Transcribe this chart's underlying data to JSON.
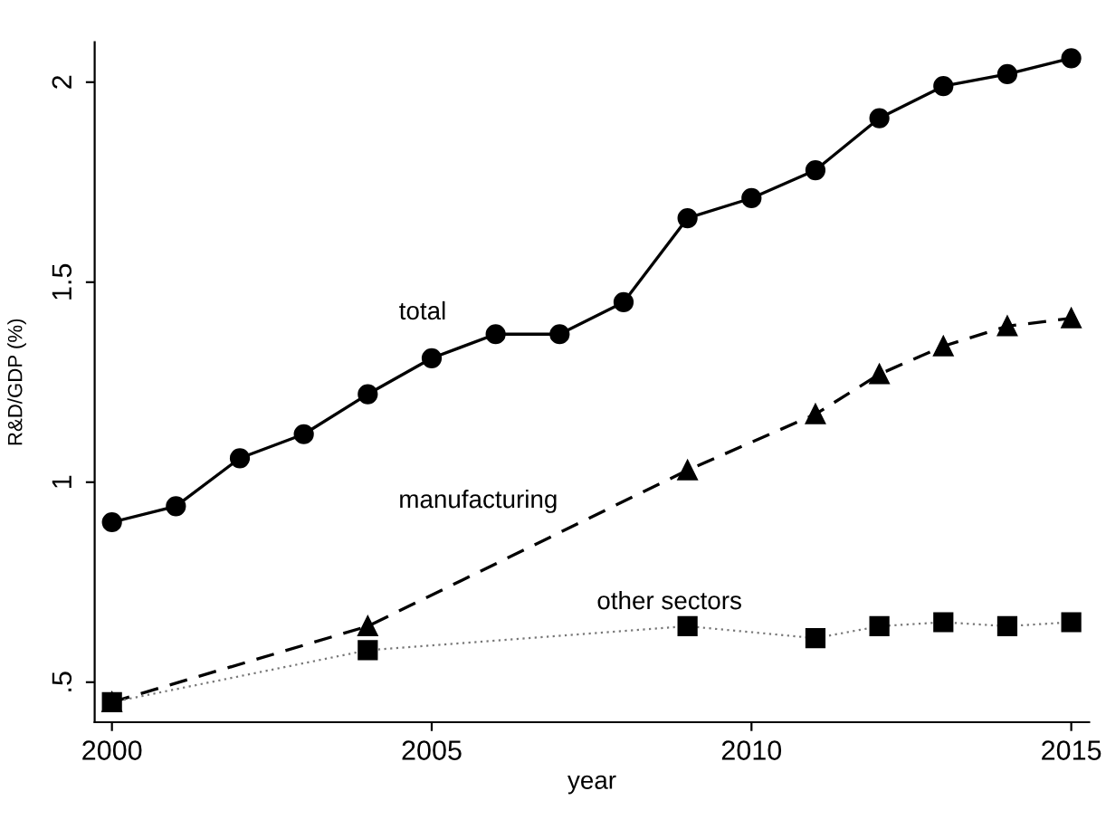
{
  "chart_data": {
    "type": "line",
    "xlabel": "year",
    "ylabel": "R&D/GDP (%)",
    "xlim": [
      1999.73,
      2015.28
    ],
    "xticks": [
      2000,
      2005,
      2010,
      2015
    ],
    "ylim": [
      0.4,
      2.1
    ],
    "yticks": [
      {
        "value": 0.5,
        "label": ".5"
      },
      1,
      1.5,
      2
    ],
    "grid": false,
    "legend": false,
    "series": [
      {
        "name": "total",
        "color": "#000000",
        "marker": "circle",
        "line_style": "solid",
        "x": [
          2000,
          2001,
          2002,
          2003,
          2004,
          2005,
          2006,
          2007,
          2008,
          2009,
          2010,
          2011,
          2012,
          2013,
          2014,
          2015
        ],
        "values": [
          0.9,
          0.94,
          1.06,
          1.12,
          1.22,
          1.31,
          1.37,
          1.37,
          1.45,
          1.66,
          1.71,
          1.78,
          1.91,
          1.99,
          2.02,
          2.06
        ]
      },
      {
        "name": "manufacturing",
        "color": "#000000",
        "marker": "triangle",
        "line_style": "dashed",
        "x": [
          2000,
          2004,
          2009,
          2011,
          2012,
          2013,
          2014,
          2015
        ],
        "values": [
          0.45,
          0.64,
          1.03,
          1.17,
          1.27,
          1.34,
          1.39,
          1.41
        ]
      },
      {
        "name": "other sectors",
        "color": "#000000",
        "marker": "square",
        "line_style": "dotted",
        "x": [
          2000,
          2004,
          2009,
          2011,
          2012,
          2013,
          2014,
          2015
        ],
        "values": [
          0.45,
          0.58,
          0.64,
          0.61,
          0.64,
          0.65,
          0.64,
          0.65
        ]
      }
    ]
  }
}
